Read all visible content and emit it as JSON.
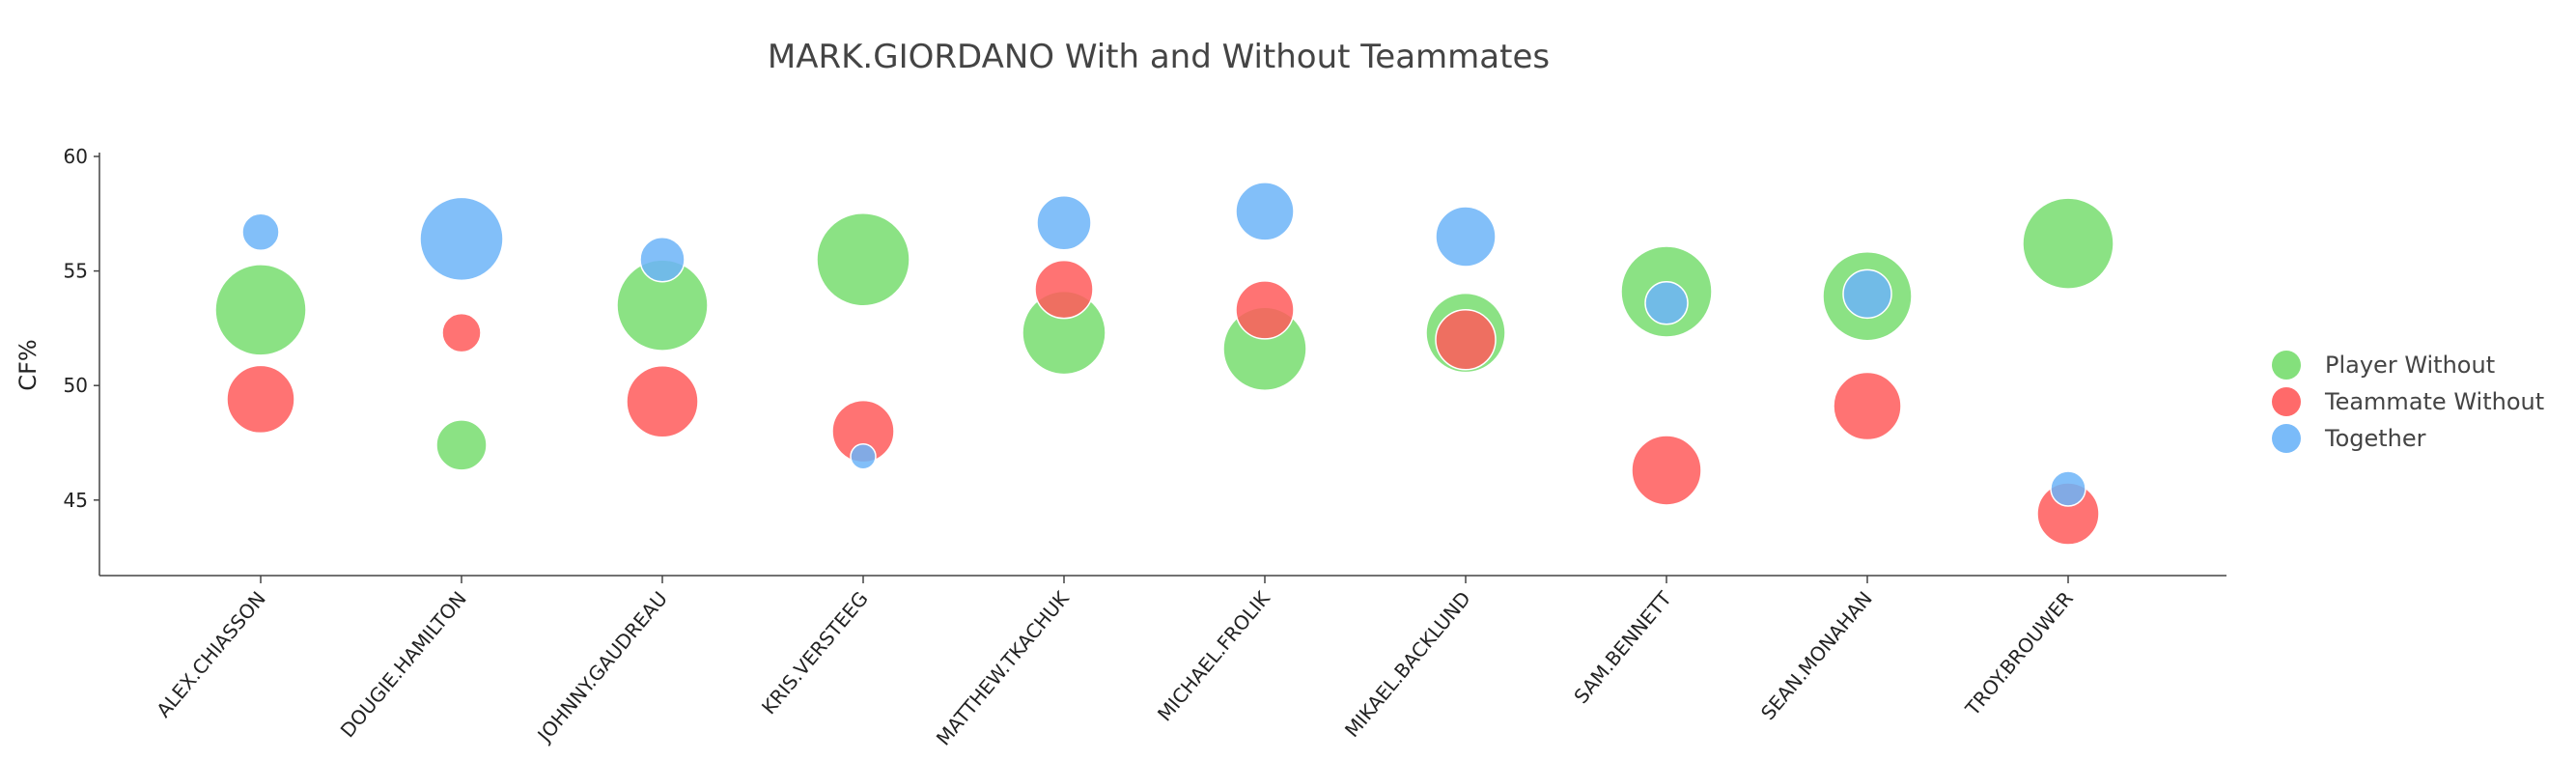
{
  "chart_data": {
    "type": "scatter",
    "title": "MARK.GIORDANO With and Without Teammates",
    "xlabel": "",
    "ylabel": "CF%",
    "ylim": [
      41.7,
      60.3
    ],
    "yticks": [
      45,
      50,
      55,
      60
    ],
    "grid": false,
    "legend_position": "right",
    "categories": [
      "ALEX.CHIASSON",
      "DOUGIE.HAMILTON",
      "JOHNNY.GAUDREAU",
      "KRIS.VERSTEEG",
      "MATTHEW.TKACHUK",
      "MICHAEL.FROLIK",
      "MIKAEL.BACKLUND",
      "SAM.BENNETT",
      "SEAN.MONAHAN",
      "TROY.BROUWER"
    ],
    "series": [
      {
        "name": "Player Without",
        "color": "#77dd6e",
        "values": [
          53.3,
          47.4,
          53.5,
          55.5,
          52.3,
          51.6,
          52.3,
          54.1,
          53.9,
          56.2
        ],
        "sizes": [
          47,
          26,
          47,
          48,
          43,
          43,
          41,
          47,
          46,
          47
        ]
      },
      {
        "name": "Teammate Without",
        "color": "#ff5a5a",
        "values": [
          49.4,
          52.3,
          49.3,
          48.0,
          54.2,
          53.3,
          52.0,
          46.3,
          49.1,
          44.4
        ]
      },
      {
        "name": "Together",
        "color": "#6cb4f8",
        "values": [
          56.7,
          56.4,
          55.5,
          46.9,
          57.1,
          57.6,
          56.5,
          53.6,
          54.0,
          45.5
        ]
      }
    ]
  }
}
